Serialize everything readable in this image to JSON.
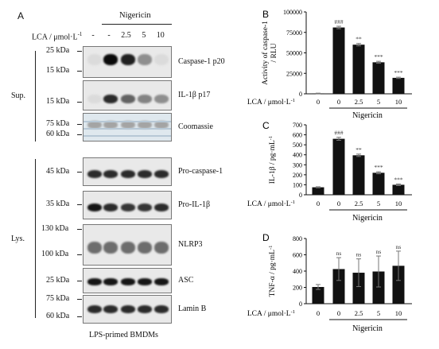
{
  "panel_a": {
    "letter": "A",
    "treatment_header": "Nigericin",
    "lca_label": "LCA / μmol·L",
    "lca_label_sup": "-1",
    "lanes": [
      "-",
      "-",
      "2.5",
      "5",
      "10"
    ],
    "group_sup": "Sup.",
    "group_lys": "Lys.",
    "footer": "LPS-primed BMDMs",
    "blots": [
      {
        "name": "Caspase-1 p20",
        "markers": [
          "25 kDa",
          "15 kDa"
        ],
        "intensity": [
          0.05,
          1.0,
          0.9,
          0.4,
          0.05
        ]
      },
      {
        "name": "IL-1β  p17",
        "markers": [
          "15 kDa"
        ],
        "intensity": [
          0.05,
          0.85,
          0.6,
          0.45,
          0.4
        ]
      },
      {
        "name": "Coomassie",
        "markers": [
          "75 kDa",
          "60 kDa"
        ],
        "intensity": [
          0.3,
          0.3,
          0.3,
          0.3,
          0.3
        ]
      },
      {
        "name": "Pro-caspase-1",
        "markers": [
          "45 kDa"
        ],
        "intensity": [
          0.85,
          0.85,
          0.85,
          0.85,
          0.85
        ]
      },
      {
        "name": "Pro-IL-1β",
        "markers": [
          "35 kDa"
        ],
        "intensity": [
          0.95,
          0.85,
          0.8,
          0.8,
          0.85
        ]
      },
      {
        "name": "NLRP3",
        "markers": [
          "130 kDa",
          "100 kDa"
        ],
        "intensity": [
          0.55,
          0.55,
          0.55,
          0.55,
          0.55
        ]
      },
      {
        "name": "ASC",
        "markers": [
          "25 kDa"
        ],
        "intensity": [
          0.95,
          0.95,
          0.95,
          0.95,
          0.95
        ]
      },
      {
        "name": "Lamin B",
        "markers": [
          "75 kDa",
          "60 kDa"
        ],
        "intensity": [
          0.85,
          0.85,
          0.85,
          0.85,
          0.85
        ]
      }
    ]
  },
  "chart_data": [
    {
      "type": "bar",
      "letter": "B",
      "ylabel": "Activity of caspase-1",
      "ylabel2": "/ RLU",
      "categories": [
        "0",
        "0",
        "2.5",
        "5",
        "10"
      ],
      "values": [
        500,
        81000,
        60000,
        38500,
        19500
      ],
      "errors": [
        300,
        1500,
        1500,
        1200,
        800
      ],
      "annotations": [
        "",
        "###",
        "**",
        "***",
        "***"
      ],
      "ylim": [
        0,
        100000
      ],
      "yticks": [
        "0",
        "25000",
        "50000",
        "75000",
        "100000"
      ],
      "xlabel": "LCA / μmol·L",
      "xlabel_sup": "-1",
      "group_label": "Nigericin"
    },
    {
      "type": "bar",
      "letter": "C",
      "ylabel": "IL-1β / pg·mL",
      "ylabel_sup": "-1",
      "categories": [
        "0",
        "0",
        "2.5",
        "5",
        "10"
      ],
      "values": [
        75,
        560,
        395,
        220,
        100
      ],
      "errors": [
        5,
        15,
        12,
        10,
        8
      ],
      "annotations": [
        "",
        "###",
        "**",
        "***",
        "***"
      ],
      "ylim": [
        0,
        700
      ],
      "yticks": [
        "0",
        "100",
        "200",
        "300",
        "400",
        "500",
        "600",
        "700"
      ],
      "xlabel": "LCA / μmol·L",
      "xlabel_sup": "-1",
      "group_label": "Nigericin"
    },
    {
      "type": "bar",
      "letter": "D",
      "ylabel": "TNF-α / pg·mL",
      "ylabel_sup": "-1",
      "categories": [
        "0",
        "0",
        "2.5",
        "5",
        "10"
      ],
      "values": [
        205,
        425,
        380,
        395,
        465
      ],
      "errors": [
        30,
        140,
        170,
        190,
        180
      ],
      "annotations": [
        "",
        "ns",
        "ns",
        "ns",
        "ns"
      ],
      "ylim": [
        0,
        800
      ],
      "yticks": [
        "0",
        "200",
        "400",
        "600",
        "800"
      ],
      "xlabel": "LCA / μmol·L",
      "xlabel_sup": "-1",
      "group_label": "Nigericin"
    }
  ]
}
